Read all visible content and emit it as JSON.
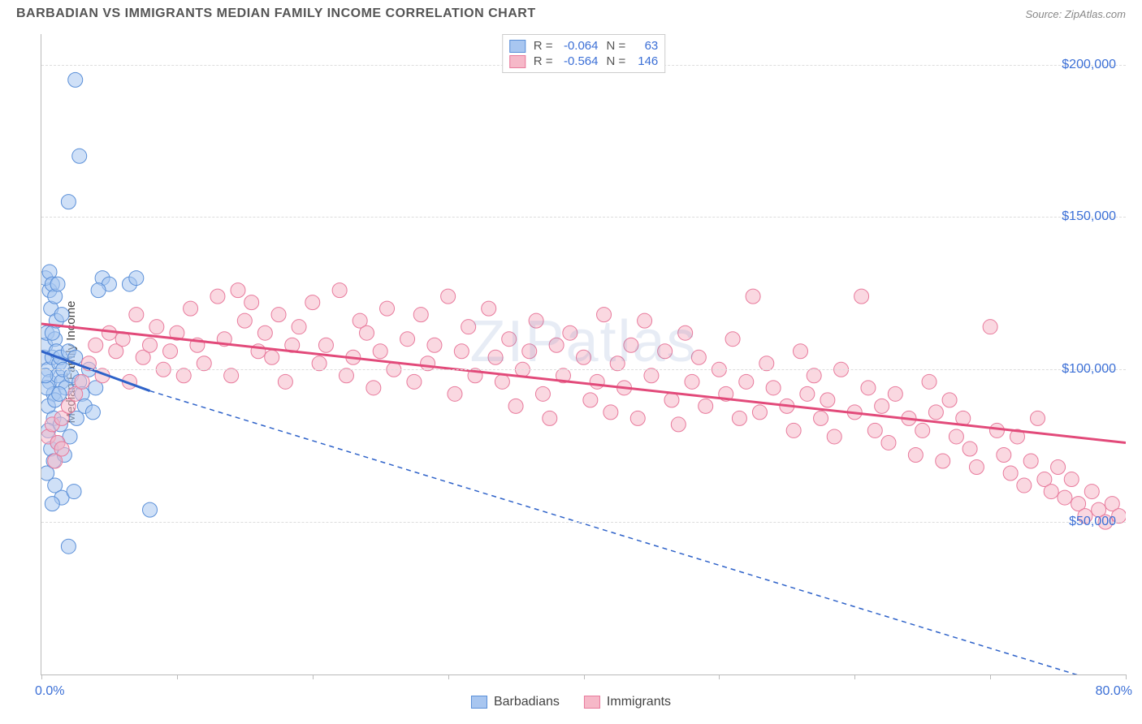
{
  "header": {
    "title": "BARBADIAN VS IMMIGRANTS MEDIAN FAMILY INCOME CORRELATION CHART",
    "source_prefix": "Source: ",
    "source": "ZipAtlas.com"
  },
  "watermark": "ZIPatlas",
  "ylabel": "Median Family Income",
  "chart": {
    "type": "scatter",
    "xlim": [
      0,
      80
    ],
    "ylim": [
      0,
      210000
    ],
    "x_tick_label_min": "0.0%",
    "x_tick_label_max": "80.0%",
    "x_ticks": [
      0,
      10,
      20,
      30,
      40,
      50,
      60,
      70,
      80
    ],
    "y_gridlines": [
      50000,
      100000,
      150000,
      200000
    ],
    "y_tick_labels": [
      "$50,000",
      "$100,000",
      "$150,000",
      "$200,000"
    ],
    "background_color": "#ffffff",
    "grid_color": "#dddddd",
    "axis_color": "#bbbbbb",
    "marker_radius": 9,
    "marker_opacity": 0.55,
    "series": [
      {
        "name": "Barbadians",
        "color_fill": "#a8c6f0",
        "color_stroke": "#5a8fd8",
        "r_label": "R =",
        "r_value": "-0.064",
        "n_label": "N =",
        "n_value": "63",
        "trend": {
          "color": "#2e62c9",
          "width": 3,
          "x1": 0,
          "y1": 106000,
          "x2": 8,
          "y2": 93000,
          "dash_extend_x2": 80,
          "dash_extend_y2": -5000
        },
        "points": [
          [
            0.2,
            104000
          ],
          [
            0.3,
            108000
          ],
          [
            0.5,
            100000
          ],
          [
            0.4,
            112000
          ],
          [
            0.6,
            96000
          ],
          [
            0.8,
            104000
          ],
          [
            1.0,
            110000
          ],
          [
            1.2,
            98000
          ],
          [
            0.7,
            120000
          ],
          [
            0.9,
            92000
          ],
          [
            1.1,
            106000
          ],
          [
            1.3,
            102000
          ],
          [
            0.5,
            88000
          ],
          [
            0.4,
            94000
          ],
          [
            0.8,
            112000
          ],
          [
            1.5,
            96000
          ],
          [
            1.4,
            104000
          ],
          [
            0.6,
            126000
          ],
          [
            0.3,
            98000
          ],
          [
            1.0,
            90000
          ],
          [
            1.6,
            100000
          ],
          [
            1.8,
            94000
          ],
          [
            2.0,
            106000
          ],
          [
            0.9,
            84000
          ],
          [
            1.1,
            116000
          ],
          [
            1.3,
            92000
          ],
          [
            0.5,
            80000
          ],
          [
            0.7,
            74000
          ],
          [
            0.9,
            70000
          ],
          [
            1.2,
            76000
          ],
          [
            1.4,
            82000
          ],
          [
            0.4,
            66000
          ],
          [
            2.2,
            98000
          ],
          [
            2.5,
            104000
          ],
          [
            2.8,
            96000
          ],
          [
            3.0,
            92000
          ],
          [
            3.5,
            100000
          ],
          [
            4.0,
            94000
          ],
          [
            0.3,
            130000
          ],
          [
            0.6,
            132000
          ],
          [
            0.8,
            128000
          ],
          [
            1.0,
            124000
          ],
          [
            1.5,
            118000
          ],
          [
            1.2,
            128000
          ],
          [
            4.5,
            130000
          ],
          [
            5.0,
            128000
          ],
          [
            4.2,
            126000
          ],
          [
            2.5,
            195000
          ],
          [
            2.8,
            170000
          ],
          [
            2.0,
            155000
          ],
          [
            6.5,
            128000
          ],
          [
            7.0,
            130000
          ],
          [
            2.0,
            42000
          ],
          [
            8.0,
            54000
          ],
          [
            1.0,
            62000
          ],
          [
            1.5,
            58000
          ],
          [
            0.8,
            56000
          ],
          [
            2.4,
            60000
          ],
          [
            3.2,
            88000
          ],
          [
            3.8,
            86000
          ],
          [
            1.7,
            72000
          ],
          [
            2.1,
            78000
          ],
          [
            2.6,
            84000
          ]
        ]
      },
      {
        "name": "Immigrants",
        "color_fill": "#f6b8c8",
        "color_stroke": "#e87a9c",
        "r_label": "R =",
        "r_value": "-0.564",
        "n_label": "N =",
        "n_value": "146",
        "trend": {
          "color": "#e24a7a",
          "width": 3,
          "x1": 0,
          "y1": 115000,
          "x2": 80,
          "y2": 76000
        },
        "points": [
          [
            0.5,
            78000
          ],
          [
            0.8,
            82000
          ],
          [
            1.2,
            76000
          ],
          [
            1.5,
            84000
          ],
          [
            2.0,
            88000
          ],
          [
            2.5,
            92000
          ],
          [
            3.0,
            96000
          ],
          [
            3.5,
            102000
          ],
          [
            4.0,
            108000
          ],
          [
            4.5,
            98000
          ],
          [
            5.0,
            112000
          ],
          [
            5.5,
            106000
          ],
          [
            6.0,
            110000
          ],
          [
            6.5,
            96000
          ],
          [
            7.0,
            118000
          ],
          [
            7.5,
            104000
          ],
          [
            8.0,
            108000
          ],
          [
            8.5,
            114000
          ],
          [
            9.0,
            100000
          ],
          [
            9.5,
            106000
          ],
          [
            10,
            112000
          ],
          [
            10.5,
            98000
          ],
          [
            11,
            120000
          ],
          [
            11.5,
            108000
          ],
          [
            12,
            102000
          ],
          [
            13,
            124000
          ],
          [
            13.5,
            110000
          ],
          [
            14,
            98000
          ],
          [
            14.5,
            126000
          ],
          [
            15,
            116000
          ],
          [
            15.5,
            122000
          ],
          [
            16,
            106000
          ],
          [
            16.5,
            112000
          ],
          [
            17,
            104000
          ],
          [
            17.5,
            118000
          ],
          [
            18,
            96000
          ],
          [
            18.5,
            108000
          ],
          [
            19,
            114000
          ],
          [
            20,
            122000
          ],
          [
            20.5,
            102000
          ],
          [
            21,
            108000
          ],
          [
            22,
            126000
          ],
          [
            22.5,
            98000
          ],
          [
            23,
            104000
          ],
          [
            23.5,
            116000
          ],
          [
            24,
            112000
          ],
          [
            24.5,
            94000
          ],
          [
            25,
            106000
          ],
          [
            25.5,
            120000
          ],
          [
            26,
            100000
          ],
          [
            27,
            110000
          ],
          [
            27.5,
            96000
          ],
          [
            28,
            118000
          ],
          [
            28.5,
            102000
          ],
          [
            29,
            108000
          ],
          [
            30,
            124000
          ],
          [
            30.5,
            92000
          ],
          [
            31,
            106000
          ],
          [
            31.5,
            114000
          ],
          [
            32,
            98000
          ],
          [
            33,
            120000
          ],
          [
            33.5,
            104000
          ],
          [
            34,
            96000
          ],
          [
            34.5,
            110000
          ],
          [
            35,
            88000
          ],
          [
            35.5,
            100000
          ],
          [
            36,
            106000
          ],
          [
            36.5,
            116000
          ],
          [
            37,
            92000
          ],
          [
            37.5,
            84000
          ],
          [
            38,
            108000
          ],
          [
            38.5,
            98000
          ],
          [
            39,
            112000
          ],
          [
            40,
            104000
          ],
          [
            40.5,
            90000
          ],
          [
            41,
            96000
          ],
          [
            41.5,
            118000
          ],
          [
            42,
            86000
          ],
          [
            42.5,
            102000
          ],
          [
            43,
            94000
          ],
          [
            43.5,
            108000
          ],
          [
            44,
            84000
          ],
          [
            44.5,
            116000
          ],
          [
            45,
            98000
          ],
          [
            46,
            106000
          ],
          [
            46.5,
            90000
          ],
          [
            47,
            82000
          ],
          [
            47.5,
            112000
          ],
          [
            48,
            96000
          ],
          [
            48.5,
            104000
          ],
          [
            49,
            88000
          ],
          [
            50,
            100000
          ],
          [
            50.5,
            92000
          ],
          [
            51,
            110000
          ],
          [
            51.5,
            84000
          ],
          [
            52,
            96000
          ],
          [
            52.5,
            124000
          ],
          [
            53,
            86000
          ],
          [
            53.5,
            102000
          ],
          [
            54,
            94000
          ],
          [
            55,
            88000
          ],
          [
            55.5,
            80000
          ],
          [
            56,
            106000
          ],
          [
            56.5,
            92000
          ],
          [
            57,
            98000
          ],
          [
            57.5,
            84000
          ],
          [
            58,
            90000
          ],
          [
            58.5,
            78000
          ],
          [
            59,
            100000
          ],
          [
            60,
            86000
          ],
          [
            60.5,
            124000
          ],
          [
            61,
            94000
          ],
          [
            61.5,
            80000
          ],
          [
            62,
            88000
          ],
          [
            62.5,
            76000
          ],
          [
            63,
            92000
          ],
          [
            64,
            84000
          ],
          [
            64.5,
            72000
          ],
          [
            65,
            80000
          ],
          [
            65.5,
            96000
          ],
          [
            66,
            86000
          ],
          [
            66.5,
            70000
          ],
          [
            67,
            90000
          ],
          [
            67.5,
            78000
          ],
          [
            68,
            84000
          ],
          [
            68.5,
            74000
          ],
          [
            69,
            68000
          ],
          [
            70,
            114000
          ],
          [
            70.5,
            80000
          ],
          [
            71,
            72000
          ],
          [
            71.5,
            66000
          ],
          [
            72,
            78000
          ],
          [
            72.5,
            62000
          ],
          [
            73,
            70000
          ],
          [
            73.5,
            84000
          ],
          [
            74,
            64000
          ],
          [
            74.5,
            60000
          ],
          [
            75,
            68000
          ],
          [
            75.5,
            58000
          ],
          [
            76,
            64000
          ],
          [
            76.5,
            56000
          ],
          [
            77,
            52000
          ],
          [
            77.5,
            60000
          ],
          [
            78,
            54000
          ],
          [
            78.5,
            50000
          ],
          [
            79,
            56000
          ],
          [
            79.5,
            52000
          ],
          [
            1.0,
            70000
          ],
          [
            1.5,
            74000
          ]
        ]
      }
    ]
  },
  "legend_bottom": {
    "items": [
      {
        "label": "Barbadians",
        "fill": "#a8c6f0",
        "stroke": "#5a8fd8"
      },
      {
        "label": "Immigrants",
        "fill": "#f6b8c8",
        "stroke": "#e87a9c"
      }
    ]
  }
}
